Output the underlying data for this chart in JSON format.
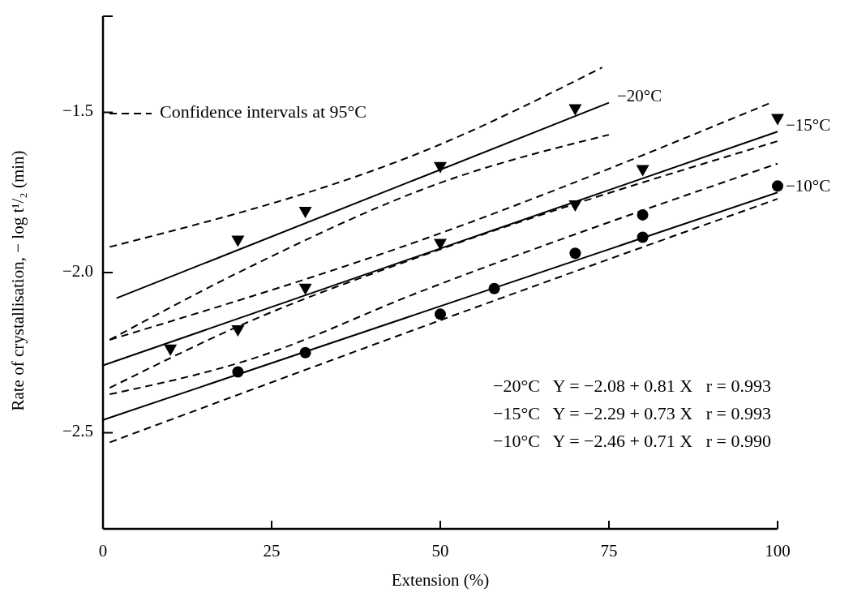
{
  "chart_data": {
    "type": "scatter",
    "xlabel": "Extension (%)",
    "ylabel": "Rate of crystallisation, − log t¹/₂ (min)",
    "xlim": [
      0,
      100
    ],
    "ylim": [
      -2.8,
      -1.2
    ],
    "xticks": [
      0,
      25,
      50,
      75,
      100
    ],
    "yticks": [
      {
        "value": -1.5,
        "label": "−1.5"
      },
      {
        "value": -2.0,
        "label": "−2.0"
      },
      {
        "value": -2.5,
        "label": "−2.5"
      }
    ],
    "grid": false,
    "legend": "top left",
    "series": [
      {
        "marker": "triangle",
        "color": "#000000",
        "x": [
          20,
          30,
          50,
          70
        ],
        "values": [
          -1.9,
          -1.81,
          -1.67,
          -1.49
        ]
      },
      {
        "marker": "triangle",
        "color": "#000000",
        "x": [
          10,
          20,
          30,
          50,
          70,
          80,
          100
        ],
        "values": [
          -2.24,
          -2.18,
          -2.05,
          -1.91,
          -1.79,
          -1.68,
          -1.52
        ]
      },
      {
        "marker": "circle",
        "color": "#000000",
        "x": [
          20,
          30,
          50,
          58,
          70,
          80,
          80,
          100
        ],
        "values": [
          -2.31,
          -2.25,
          -2.13,
          -2.05,
          -1.94,
          -1.89,
          -1.82,
          -1.73
        ]
      },
      {
        "type": "line",
        "name": "−20°C",
        "line_style": "solid",
        "color": "#000000",
        "x": [
          2,
          75
        ],
        "values": [
          -2.08,
          -1.47
        ]
      },
      {
        "type": "line",
        "name": "−15°C",
        "line_style": "solid",
        "color": "#000000",
        "x": [
          0,
          100
        ],
        "values": [
          -2.29,
          -1.56
        ]
      },
      {
        "type": "line",
        "name": "−10°C",
        "line_style": "solid",
        "color": "#000000",
        "x": [
          0,
          100
        ],
        "values": [
          -2.46,
          -1.75
        ]
      },
      {
        "type": "line",
        "name": "Confidence intervals at 95°C",
        "line_style": "dashed",
        "color": "#000000",
        "x": [
          1,
          50,
          74
        ],
        "values": [
          -1.92,
          -1.6,
          -1.36
        ]
      },
      {
        "type": "line",
        "line_style": "dashed",
        "color": "#000000",
        "x": [
          1,
          22,
          50,
          75
        ],
        "values": [
          -2.21,
          -1.98,
          -1.72,
          -1.57
        ]
      },
      {
        "type": "line",
        "line_style": "dashed",
        "color": "#000000",
        "x": [
          1,
          47,
          99
        ],
        "values": [
          -2.21,
          -1.9,
          -1.47
        ]
      },
      {
        "type": "line",
        "line_style": "dashed",
        "color": "#000000",
        "x": [
          1,
          22,
          47,
          100
        ],
        "values": [
          -2.36,
          -2.15,
          -1.95,
          -1.59
        ]
      },
      {
        "type": "line",
        "line_style": "dashed",
        "color": "#000000",
        "x": [
          1,
          22,
          47,
          100
        ],
        "values": [
          -2.38,
          -2.27,
          -2.06,
          -1.66
        ]
      },
      {
        "type": "line",
        "line_style": "dashed",
        "color": "#000000",
        "x": [
          1,
          59,
          100
        ],
        "values": [
          -2.53,
          -2.08,
          -1.77
        ]
      }
    ],
    "annotations": [
      "−20°C   Y = −2.08 + 0.81 X   r = 0.993",
      "−15°C   Y = −2.29 + 0.73 X   r = 0.993",
      "−10°C   Y = −2.46 + 0.71 X   r = 0.990"
    ]
  }
}
